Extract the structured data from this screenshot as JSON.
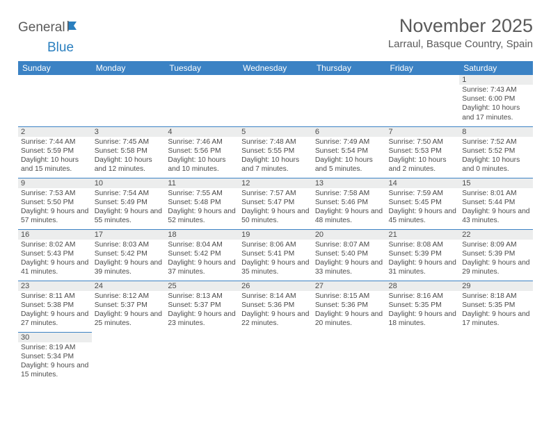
{
  "logo": {
    "main": "General",
    "sub": "Blue"
  },
  "title": "November 2025",
  "location": "Larraul, Basque Country, Spain",
  "colors": {
    "header_bg": "#3b82c4",
    "header_fg": "#ffffff",
    "daynum_bg": "#eceded",
    "border": "#3b82c4",
    "text": "#4a4a4a",
    "logo_gray": "#5a5a5a",
    "logo_blue": "#2a7fbf"
  },
  "days_of_week": [
    "Sunday",
    "Monday",
    "Tuesday",
    "Wednesday",
    "Thursday",
    "Friday",
    "Saturday"
  ],
  "weeks": [
    [
      null,
      null,
      null,
      null,
      null,
      null,
      {
        "n": "1",
        "sr": "7:43 AM",
        "ss": "6:00 PM",
        "dl": "10 hours and 17 minutes."
      }
    ],
    [
      {
        "n": "2",
        "sr": "7:44 AM",
        "ss": "5:59 PM",
        "dl": "10 hours and 15 minutes."
      },
      {
        "n": "3",
        "sr": "7:45 AM",
        "ss": "5:58 PM",
        "dl": "10 hours and 12 minutes."
      },
      {
        "n": "4",
        "sr": "7:46 AM",
        "ss": "5:56 PM",
        "dl": "10 hours and 10 minutes."
      },
      {
        "n": "5",
        "sr": "7:48 AM",
        "ss": "5:55 PM",
        "dl": "10 hours and 7 minutes."
      },
      {
        "n": "6",
        "sr": "7:49 AM",
        "ss": "5:54 PM",
        "dl": "10 hours and 5 minutes."
      },
      {
        "n": "7",
        "sr": "7:50 AM",
        "ss": "5:53 PM",
        "dl": "10 hours and 2 minutes."
      },
      {
        "n": "8",
        "sr": "7:52 AM",
        "ss": "5:52 PM",
        "dl": "10 hours and 0 minutes."
      }
    ],
    [
      {
        "n": "9",
        "sr": "7:53 AM",
        "ss": "5:50 PM",
        "dl": "9 hours and 57 minutes."
      },
      {
        "n": "10",
        "sr": "7:54 AM",
        "ss": "5:49 PM",
        "dl": "9 hours and 55 minutes."
      },
      {
        "n": "11",
        "sr": "7:55 AM",
        "ss": "5:48 PM",
        "dl": "9 hours and 52 minutes."
      },
      {
        "n": "12",
        "sr": "7:57 AM",
        "ss": "5:47 PM",
        "dl": "9 hours and 50 minutes."
      },
      {
        "n": "13",
        "sr": "7:58 AM",
        "ss": "5:46 PM",
        "dl": "9 hours and 48 minutes."
      },
      {
        "n": "14",
        "sr": "7:59 AM",
        "ss": "5:45 PM",
        "dl": "9 hours and 45 minutes."
      },
      {
        "n": "15",
        "sr": "8:01 AM",
        "ss": "5:44 PM",
        "dl": "9 hours and 43 minutes."
      }
    ],
    [
      {
        "n": "16",
        "sr": "8:02 AM",
        "ss": "5:43 PM",
        "dl": "9 hours and 41 minutes."
      },
      {
        "n": "17",
        "sr": "8:03 AM",
        "ss": "5:42 PM",
        "dl": "9 hours and 39 minutes."
      },
      {
        "n": "18",
        "sr": "8:04 AM",
        "ss": "5:42 PM",
        "dl": "9 hours and 37 minutes."
      },
      {
        "n": "19",
        "sr": "8:06 AM",
        "ss": "5:41 PM",
        "dl": "9 hours and 35 minutes."
      },
      {
        "n": "20",
        "sr": "8:07 AM",
        "ss": "5:40 PM",
        "dl": "9 hours and 33 minutes."
      },
      {
        "n": "21",
        "sr": "8:08 AM",
        "ss": "5:39 PM",
        "dl": "9 hours and 31 minutes."
      },
      {
        "n": "22",
        "sr": "8:09 AM",
        "ss": "5:39 PM",
        "dl": "9 hours and 29 minutes."
      }
    ],
    [
      {
        "n": "23",
        "sr": "8:11 AM",
        "ss": "5:38 PM",
        "dl": "9 hours and 27 minutes."
      },
      {
        "n": "24",
        "sr": "8:12 AM",
        "ss": "5:37 PM",
        "dl": "9 hours and 25 minutes."
      },
      {
        "n": "25",
        "sr": "8:13 AM",
        "ss": "5:37 PM",
        "dl": "9 hours and 23 minutes."
      },
      {
        "n": "26",
        "sr": "8:14 AM",
        "ss": "5:36 PM",
        "dl": "9 hours and 22 minutes."
      },
      {
        "n": "27",
        "sr": "8:15 AM",
        "ss": "5:36 PM",
        "dl": "9 hours and 20 minutes."
      },
      {
        "n": "28",
        "sr": "8:16 AM",
        "ss": "5:35 PM",
        "dl": "9 hours and 18 minutes."
      },
      {
        "n": "29",
        "sr": "8:18 AM",
        "ss": "5:35 PM",
        "dl": "9 hours and 17 minutes."
      }
    ],
    [
      {
        "n": "30",
        "sr": "8:19 AM",
        "ss": "5:34 PM",
        "dl": "9 hours and 15 minutes."
      },
      null,
      null,
      null,
      null,
      null,
      null
    ]
  ],
  "labels": {
    "sunrise": "Sunrise:",
    "sunset": "Sunset:",
    "daylight": "Daylight:"
  }
}
